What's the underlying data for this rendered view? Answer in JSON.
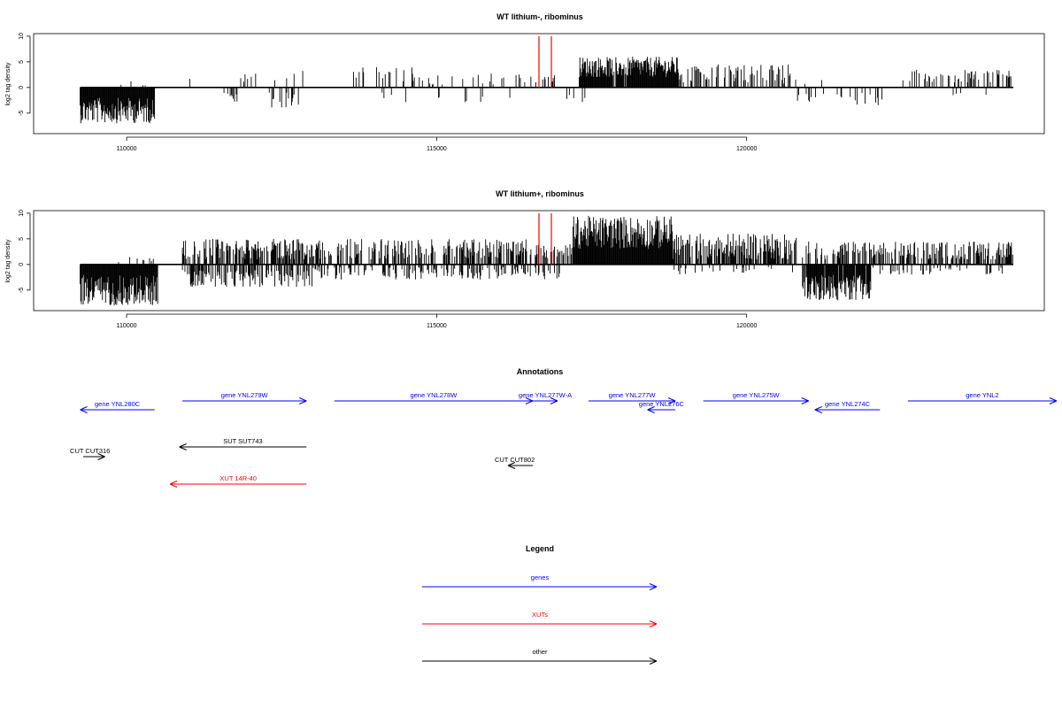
{
  "chart_data": [
    {
      "type": "bar",
      "title": "WT lithium-, ribominus",
      "ylabel": "log2 tag density",
      "xlim": [
        108500,
        124800
      ],
      "ylim": [
        -9,
        10.5
      ],
      "x_ticks": [
        110000,
        115000,
        120000
      ],
      "y_ticks": [
        10,
        5,
        0,
        -5
      ],
      "grid": false,
      "red_lines_x": [
        116650,
        116850
      ],
      "segments": [
        {
          "x0": 109250,
          "x1": 110450,
          "sign": -1,
          "min": 2,
          "max": 7,
          "density": 1.0
        },
        {
          "x0": 109600,
          "x1": 110300,
          "sign": 1,
          "min": 0.3,
          "max": 1.2,
          "density": 0.05
        },
        {
          "x0": 110850,
          "x1": 111100,
          "sign": 1,
          "min": 1,
          "max": 2,
          "density": 0.05
        },
        {
          "x0": 111500,
          "x1": 111800,
          "sign": -1,
          "min": 1,
          "max": 3.5,
          "density": 0.2
        },
        {
          "x0": 111800,
          "x1": 112400,
          "sign": 1,
          "min": 1,
          "max": 4,
          "density": 0.12
        },
        {
          "x0": 112300,
          "x1": 112800,
          "sign": -1,
          "min": 1,
          "max": 4,
          "density": 0.25
        },
        {
          "x0": 112500,
          "x1": 113000,
          "sign": 1,
          "min": 1,
          "max": 3.5,
          "density": 0.12
        },
        {
          "x0": 113600,
          "x1": 114600,
          "sign": 1,
          "min": 1,
          "max": 4,
          "density": 0.2
        },
        {
          "x0": 114000,
          "x1": 114500,
          "sign": -1,
          "min": 1,
          "max": 3,
          "density": 0.05
        },
        {
          "x0": 114600,
          "x1": 116600,
          "sign": 1,
          "min": 0.5,
          "max": 3,
          "density": 0.1
        },
        {
          "x0": 115000,
          "x1": 116500,
          "sign": -1,
          "min": 0.5,
          "max": 3,
          "density": 0.05
        },
        {
          "x0": 116700,
          "x1": 116900,
          "sign": 1,
          "min": 1,
          "max": 3,
          "density": 0.2
        },
        {
          "x0": 117100,
          "x1": 117400,
          "sign": -1,
          "min": 1,
          "max": 3,
          "density": 0.1
        },
        {
          "x0": 117300,
          "x1": 118900,
          "sign": 1,
          "min": 2,
          "max": 6,
          "density": 0.95
        },
        {
          "x0": 118900,
          "x1": 120700,
          "sign": 1,
          "min": 1,
          "max": 4.5,
          "density": 0.3
        },
        {
          "x0": 120800,
          "x1": 122200,
          "sign": -1,
          "min": 1,
          "max": 4,
          "density": 0.2
        },
        {
          "x0": 120500,
          "x1": 121500,
          "sign": 1,
          "min": 0.5,
          "max": 2,
          "density": 0.05
        },
        {
          "x0": 122500,
          "x1": 124300,
          "sign": 1,
          "min": 1,
          "max": 3.5,
          "density": 0.3
        },
        {
          "x0": 123300,
          "x1": 124000,
          "sign": -1,
          "min": 0.5,
          "max": 1.5,
          "density": 0.05
        }
      ]
    },
    {
      "type": "bar",
      "title": "WT lithium+, ribominus",
      "ylabel": "log2 tag density",
      "xlim": [
        108500,
        124800
      ],
      "ylim": [
        -9,
        10.5
      ],
      "x_ticks": [
        110000,
        115000,
        120000
      ],
      "y_ticks": [
        10,
        5,
        0,
        -5
      ],
      "grid": false,
      "red_lines_x": [
        116650,
        116850
      ],
      "segments": [
        {
          "x0": 109250,
          "x1": 110500,
          "sign": -1,
          "min": 2,
          "max": 8,
          "density": 1.0
        },
        {
          "x0": 109700,
          "x1": 110600,
          "sign": 1,
          "min": 0.3,
          "max": 1.5,
          "density": 0.1
        },
        {
          "x0": 110900,
          "x1": 113000,
          "sign": 1,
          "min": 1,
          "max": 5,
          "density": 0.6
        },
        {
          "x0": 110900,
          "x1": 113000,
          "sign": -1,
          "min": 1,
          "max": 4.5,
          "density": 0.5
        },
        {
          "x0": 113000,
          "x1": 116600,
          "sign": 1,
          "min": 1,
          "max": 5,
          "density": 0.45
        },
        {
          "x0": 113000,
          "x1": 116600,
          "sign": -1,
          "min": 0.5,
          "max": 3,
          "density": 0.3
        },
        {
          "x0": 116600,
          "x1": 117200,
          "sign": 1,
          "min": 1,
          "max": 4,
          "density": 0.4
        },
        {
          "x0": 116600,
          "x1": 117100,
          "sign": -1,
          "min": 1,
          "max": 3,
          "density": 0.2
        },
        {
          "x0": 117200,
          "x1": 118800,
          "sign": 1,
          "min": 3,
          "max": 9.5,
          "density": 1.0
        },
        {
          "x0": 118800,
          "x1": 120800,
          "sign": 1,
          "min": 1,
          "max": 6,
          "density": 0.7
        },
        {
          "x0": 118800,
          "x1": 120800,
          "sign": -1,
          "min": 0.5,
          "max": 2,
          "density": 0.1
        },
        {
          "x0": 120900,
          "x1": 122000,
          "sign": -1,
          "min": 2,
          "max": 7,
          "density": 0.95
        },
        {
          "x0": 120900,
          "x1": 122200,
          "sign": 1,
          "min": 1,
          "max": 4.5,
          "density": 0.4
        },
        {
          "x0": 122000,
          "x1": 124300,
          "sign": 1,
          "min": 1,
          "max": 4.5,
          "density": 0.5
        },
        {
          "x0": 122000,
          "x1": 124300,
          "sign": -1,
          "min": 0.5,
          "max": 2,
          "density": 0.15
        }
      ]
    }
  ],
  "annotations": {
    "title": "Annotations",
    "colors": {
      "gene": "#0000ff",
      "xut": "#ff0000",
      "other": "#000000"
    },
    "items": [
      {
        "label": "gene YNL280C",
        "kind": "gene",
        "x0": 109250,
        "x1": 110450,
        "dir": "left",
        "row": 1
      },
      {
        "label": "gene YNL279W",
        "kind": "gene",
        "x0": 110900,
        "x1": 112900,
        "dir": "right",
        "row": 0
      },
      {
        "label": "gene YNL278W",
        "kind": "gene",
        "x0": 113350,
        "x1": 116550,
        "dir": "right",
        "row": 0
      },
      {
        "label": "gene YNL277W-A",
        "kind": "gene",
        "x0": 116550,
        "x1": 116950,
        "dir": "right",
        "row": 0
      },
      {
        "label": "gene YNL277W",
        "kind": "gene",
        "x0": 117450,
        "x1": 118850,
        "dir": "right",
        "row": 0
      },
      {
        "label": "gene YNL276C",
        "kind": "gene",
        "x0": 118400,
        "x1": 118850,
        "dir": "left",
        "row": 1
      },
      {
        "label": "gene YNL275W",
        "kind": "gene",
        "x0": 119300,
        "x1": 121000,
        "dir": "right",
        "row": 0
      },
      {
        "label": "gene YNL274C",
        "kind": "gene",
        "x0": 121100,
        "x1": 122150,
        "dir": "left",
        "row": 1
      },
      {
        "label": "gene YNL2",
        "kind": "gene",
        "x0": 122600,
        "x1": 125000,
        "dir": "right",
        "row": 0
      },
      {
        "label": "SUT SUT743",
        "kind": "other",
        "x0": 110850,
        "x1": 112900,
        "dir": "left",
        "row": 2
      },
      {
        "label": "CUT CUT316",
        "kind": "other",
        "x0": 109300,
        "x1": 109650,
        "dir": "right",
        "row": 3
      },
      {
        "label": "CUT CUT802",
        "kind": "other",
        "x0": 116150,
        "x1": 116550,
        "dir": "left",
        "row": 4
      },
      {
        "label": "XUT 14R-40",
        "kind": "xut",
        "x0": 110700,
        "x1": 112900,
        "dir": "left",
        "row": 5
      }
    ]
  },
  "legend": {
    "title": "Legend",
    "items": [
      {
        "label": "genes",
        "kind": "gene"
      },
      {
        "label": "XUTs",
        "kind": "xut"
      },
      {
        "label": "other",
        "kind": "other"
      }
    ]
  }
}
